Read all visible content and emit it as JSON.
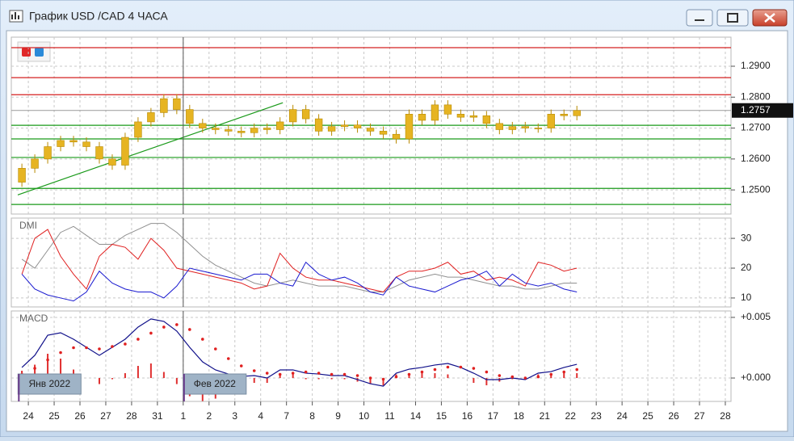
{
  "window": {
    "title": "График USD /CAD  4 ЧАСА"
  },
  "chart_data": [
    {
      "type": "candlestick",
      "color": "#e6b422",
      "edge_color": "#b88a00",
      "xlim": [
        -0.66,
        27.22
      ],
      "ylim": [
        1.2422,
        1.2994
      ],
      "yticks": [
        {
          "value": 1.29,
          "label": "1.2900"
        },
        {
          "value": 1.28,
          "label": "1.2800"
        },
        {
          "value": 1.27,
          "label": "1.2700"
        },
        {
          "value": 1.26,
          "label": "1.2600"
        },
        {
          "value": 1.25,
          "label": "1.2500"
        }
      ],
      "grid": true,
      "cursor_x": 6,
      "x": [
        -0.25,
        0.25,
        0.75,
        1.25,
        1.75,
        2.25,
        2.75,
        3.25,
        3.75,
        4.25,
        4.75,
        5.25,
        5.75,
        6.25,
        6.75,
        7.25,
        7.75,
        8.25,
        8.75,
        9.25,
        9.75,
        10.25,
        10.75,
        11.25,
        11.75,
        12.25,
        12.75,
        13.25,
        13.75,
        14.25,
        14.75,
        15.25,
        15.75,
        16.25,
        16.75,
        17.25,
        17.75,
        18.25,
        18.75,
        19.25,
        19.75,
        20.25,
        20.75,
        21.25
      ],
      "open": [
        1.2525,
        1.257,
        1.26,
        1.264,
        1.266,
        1.2655,
        1.264,
        1.26,
        1.258,
        1.267,
        1.272,
        1.275,
        1.2795,
        1.276,
        1.2715,
        1.27,
        1.2695,
        1.269,
        1.2685,
        1.27,
        1.2695,
        1.272,
        1.276,
        1.273,
        1.269,
        1.2705,
        1.271,
        1.27,
        1.269,
        1.268,
        1.2665,
        1.2745,
        1.2725,
        1.2775,
        1.2745,
        1.2735,
        1.274,
        1.2715,
        1.2695,
        1.2705,
        1.27,
        1.27,
        1.2745,
        1.274
      ],
      "high": [
        1.2585,
        1.2615,
        1.2655,
        1.2675,
        1.2675,
        1.267,
        1.2655,
        1.2615,
        1.2685,
        1.2735,
        1.2765,
        1.281,
        1.281,
        1.2775,
        1.273,
        1.2715,
        1.271,
        1.2705,
        1.2715,
        1.2715,
        1.2735,
        1.2775,
        1.2775,
        1.2745,
        1.272,
        1.2725,
        1.2725,
        1.2715,
        1.2705,
        1.2695,
        1.276,
        1.276,
        1.279,
        1.279,
        1.276,
        1.2755,
        1.2755,
        1.273,
        1.272,
        1.272,
        1.2715,
        1.276,
        1.276,
        1.2772
      ],
      "low": [
        1.251,
        1.2555,
        1.2585,
        1.2625,
        1.264,
        1.2625,
        1.2585,
        1.2565,
        1.2565,
        1.2655,
        1.2705,
        1.2735,
        1.2745,
        1.27,
        1.2685,
        1.268,
        1.2675,
        1.267,
        1.267,
        1.268,
        1.268,
        1.2705,
        1.2715,
        1.2675,
        1.2675,
        1.269,
        1.2685,
        1.2675,
        1.2665,
        1.265,
        1.265,
        1.271,
        1.271,
        1.273,
        1.272,
        1.272,
        1.27,
        1.268,
        1.268,
        1.2685,
        1.2685,
        1.2685,
        1.2725,
        1.2725
      ],
      "close": [
        1.257,
        1.26,
        1.264,
        1.266,
        1.2655,
        1.264,
        1.26,
        1.258,
        1.267,
        1.272,
        1.275,
        1.2795,
        1.276,
        1.2715,
        1.27,
        1.2695,
        1.269,
        1.2685,
        1.27,
        1.2695,
        1.272,
        1.276,
        1.273,
        1.269,
        1.2705,
        1.271,
        1.27,
        1.269,
        1.268,
        1.2665,
        1.2745,
        1.2725,
        1.2775,
        1.2745,
        1.2735,
        1.274,
        1.2715,
        1.2695,
        1.2705,
        1.27,
        1.27,
        1.2745,
        1.274,
        1.2757
      ],
      "levels": [
        {
          "value": 1.296,
          "color": "#d42020"
        },
        {
          "value": 1.2863,
          "color": "#d42020"
        },
        {
          "value": 1.2808,
          "color": "#d42020"
        },
        {
          "value": 1.2709,
          "color": "#1a9a1a"
        },
        {
          "value": 1.2665,
          "color": "#1a9a1a"
        },
        {
          "value": 1.2605,
          "color": "#1a9a1a"
        },
        {
          "value": 1.2505,
          "color": "#1a9a1a"
        },
        {
          "value": 1.2453,
          "color": "#1a9a1a"
        }
      ],
      "trendline": {
        "x": [
          -0.41,
          9.86
        ],
        "y": [
          1.2484,
          1.2782
        ],
        "color": "#1a9a1a"
      },
      "last_price": 1.2757,
      "last_price_color": "#999999"
    },
    {
      "type": "line",
      "title": "DMI",
      "ylim": [
        7.0,
        36.8
      ],
      "yticks": [
        30,
        20,
        10
      ],
      "grid": true,
      "series": [
        {
          "color": "#909090",
          "values": [
            23,
            20,
            26,
            32,
            34,
            31,
            28,
            28,
            31,
            33,
            35,
            35,
            32,
            28,
            24,
            21,
            19,
            17,
            15,
            14,
            15,
            16,
            15,
            14,
            14,
            14,
            13,
            12,
            12,
            14,
            16,
            17,
            18,
            17,
            17,
            16,
            15,
            14,
            14,
            13,
            13,
            14,
            15,
            15
          ]
        },
        {
          "color": "#e02020",
          "values": [
            18,
            30,
            33,
            24,
            18,
            13,
            24,
            28,
            27,
            23,
            30,
            26,
            20,
            19,
            18,
            17,
            16,
            15,
            13,
            14,
            25,
            20,
            17,
            16,
            16,
            15,
            14,
            13,
            12,
            17,
            19,
            19,
            20,
            22,
            18,
            19,
            16,
            17,
            16,
            14,
            22,
            21,
            19,
            20
          ]
        },
        {
          "color": "#1a1ad0",
          "values": [
            18,
            13,
            11,
            10,
            9,
            12,
            19,
            15,
            13,
            12,
            12,
            10,
            14,
            20,
            19,
            18,
            17,
            16,
            18,
            18,
            15,
            14,
            22,
            18,
            16,
            17,
            15,
            12,
            11,
            17,
            14,
            13,
            12,
            14,
            16,
            17,
            19,
            14,
            18,
            15,
            14,
            15,
            13,
            12
          ]
        }
      ]
    },
    {
      "type": "combo",
      "title": "MACD",
      "ylim": [
        -0.00193,
        0.00553
      ],
      "yticks": [
        {
          "value": 0.005,
          "label": "+0.005"
        },
        {
          "value": 0,
          "label": "+0.000"
        }
      ],
      "grid": true,
      "xticks": [
        {
          "value": 0,
          "label": "24"
        },
        {
          "value": 1,
          "label": "25"
        },
        {
          "value": 2,
          "label": "26"
        },
        {
          "value": 3,
          "label": "27"
        },
        {
          "value": 4,
          "label": "28"
        },
        {
          "value": 5,
          "label": "31"
        },
        {
          "value": 6,
          "label": "1"
        },
        {
          "value": 7,
          "label": "2"
        },
        {
          "value": 8,
          "label": "3"
        },
        {
          "value": 9,
          "label": "4"
        },
        {
          "value": 10,
          "label": "7"
        },
        {
          "value": 11,
          "label": "8"
        },
        {
          "value": 12,
          "label": "9"
        },
        {
          "value": 13,
          "label": "10"
        },
        {
          "value": 14,
          "label": "11"
        },
        {
          "value": 15,
          "label": "14"
        },
        {
          "value": 16,
          "label": "15"
        },
        {
          "value": 17,
          "label": "16"
        },
        {
          "value": 18,
          "label": "17"
        },
        {
          "value": 19,
          "label": "18"
        },
        {
          "value": 20,
          "label": "21"
        },
        {
          "value": 21,
          "label": "22"
        },
        {
          "value": 22,
          "label": "23"
        },
        {
          "value": 23,
          "label": "24"
        },
        {
          "value": 24,
          "label": "25"
        },
        {
          "value": 25,
          "label": "26"
        },
        {
          "value": 26,
          "label": "27"
        },
        {
          "value": 27,
          "label": "28"
        }
      ],
      "period_labels": [
        {
          "text": "Янв 2022",
          "x": -0.4
        },
        {
          "text": "Фев 2022",
          "x": 6
        }
      ],
      "series": [
        {
          "kind": "bar",
          "color": "#e03030",
          "values": [
            0.0006,
            0.0011,
            0.002,
            0.0016,
            0.0007,
            0,
            -0.0005,
            -0.0001,
            0.0004,
            0.001,
            0.0012,
            0.0005,
            -0.0005,
            -0.0015,
            -0.0019,
            -0.0017,
            -0.0013,
            -0.0009,
            -0.0004,
            -0.0004,
            0.0004,
            0.0003,
            -0.0001,
            -0.0001,
            -0.0001,
            -0.0001,
            -0.0003,
            -0.0005,
            -0.0006,
            0.0003,
            0.0004,
            0.0004,
            0.0004,
            0.0003,
            0,
            -0.0004,
            -0.0006,
            -0.0003,
            -0.0001,
            -0.0001,
            0.0003,
            0.0002,
            0.0004,
            0.0004
          ]
        },
        {
          "kind": "line",
          "color": "#10108a",
          "values": [
            0.00087,
            0.00187,
            0.00353,
            0.00373,
            0.0032,
            0.00253,
            0.00187,
            0.00253,
            0.0032,
            0.0042,
            0.00487,
            0.00467,
            0.00387,
            0.00253,
            0.00133,
            0.00067,
            0.00033,
            0.00013,
            0.0002,
            0,
            0.00067,
            0.00067,
            0.0004,
            0.00033,
            0.0002,
            0.0002,
            -0.00013,
            -0.00047,
            -0.00067,
            0.0004,
            0.00073,
            0.00087,
            0.00107,
            0.0012,
            0.00087,
            0.0004,
            -0.00013,
            -0.00013,
            0,
            -0.00013,
            0.0004,
            0.00053,
            0.00087,
            0.00113
          ]
        },
        {
          "kind": "dots",
          "color": "#e02020",
          "values": [
            0.0003,
            0.0008,
            0.0015,
            0.0021,
            0.0025,
            0.0025,
            0.0024,
            0.0026,
            0.0028,
            0.0032,
            0.0037,
            0.0042,
            0.0044,
            0.004,
            0.0032,
            0.0024,
            0.0016,
            0.001,
            0.0006,
            0.0004,
            0.0003,
            0.0004,
            0.0005,
            0.0004,
            0.0003,
            0.0003,
            0.0002,
            0,
            -0.0001,
            0.0001,
            0.0003,
            0.0005,
            0.0007,
            0.0009,
            0.0009,
            0.0008,
            0.0005,
            0.0002,
            0.0001,
            0,
            0.0001,
            0.0003,
            0.0005,
            0.0007
          ]
        }
      ]
    }
  ]
}
